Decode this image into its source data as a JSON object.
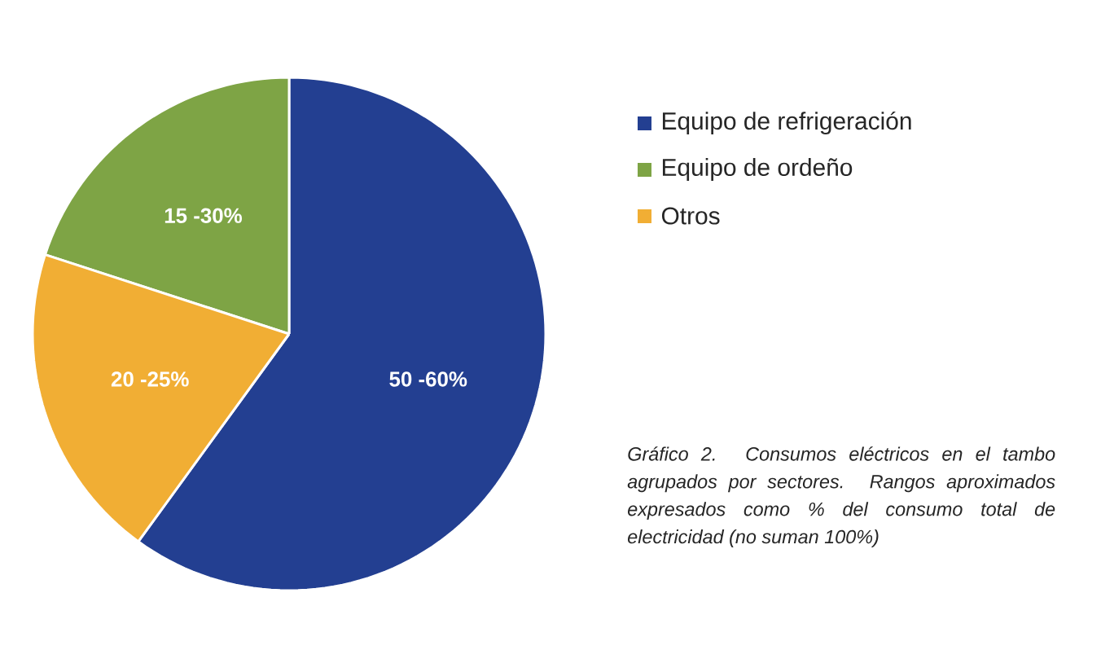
{
  "chart_data": {
    "type": "pie",
    "categories": [
      "Equipo de refrigeración",
      "Equipo de ordeño",
      "Otros"
    ],
    "values": [
      60,
      20,
      20
    ],
    "colors": [
      "#233f91",
      "#7ea445",
      "#f1ae34"
    ],
    "legend": "right",
    "annotations": [
      "Gráfico 2. Consumos eléctricos en el tambo agrupados por sectores. Rangos aproximados expresados como % del consumo total de electricidad (no suman 100%)",
      "50 -60%",
      "15 -30%",
      "20 -25%"
    ]
  }
}
